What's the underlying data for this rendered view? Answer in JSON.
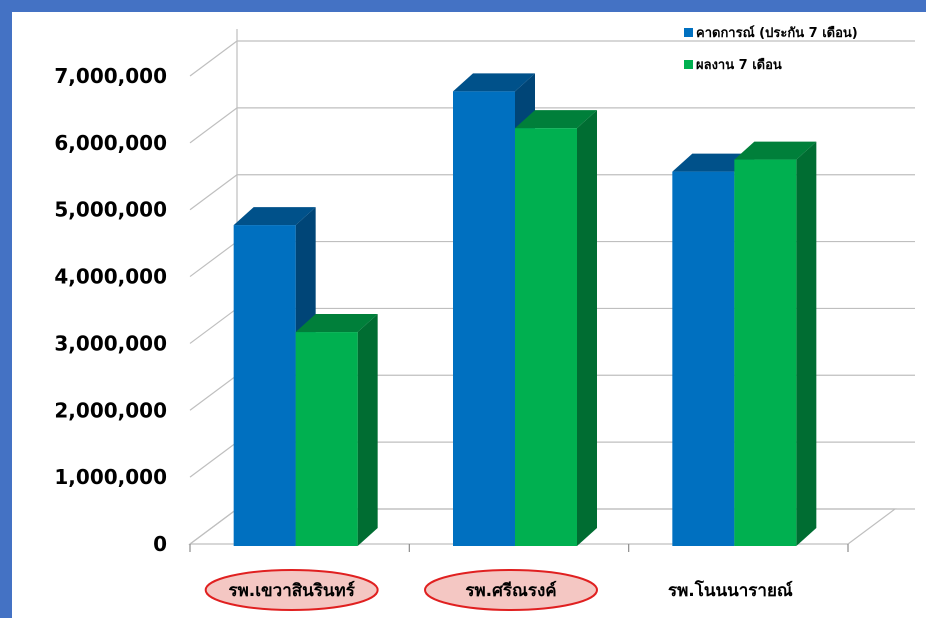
{
  "chart_data": {
    "type": "bar",
    "title": "",
    "xlabel": "",
    "ylabel": "",
    "categories": [
      "รพ.เขวาสินรินทร์",
      "รพ.ศรีณรงค์",
      "รพ.โนนนารายณ์"
    ],
    "highlighted_categories": [
      "รพ.เขวาสินรินทร์",
      "รพ.ศรีณรงค์"
    ],
    "series": [
      {
        "name": "คาดการณ์ (ประกัน 7 เดือน)",
        "values": [
          4800000,
          6800000,
          5600000
        ],
        "color": "#0070c0"
      },
      {
        "name": "ผลงาน 7 เดือน",
        "values": [
          3200000,
          6250000,
          5780000
        ],
        "color": "#00b050"
      }
    ],
    "ylim": [
      0,
      7000000
    ],
    "yticks": [
      "0",
      "1,000,000",
      "2,000,000",
      "3,000,000",
      "4,000,000",
      "5,000,000",
      "6,000,000",
      "7,000,000"
    ],
    "grid": true,
    "legend_position": "top-right",
    "highlight_color": "#f4c7c3",
    "highlight_border": "#e02020",
    "frame_color": "#4472c4"
  }
}
